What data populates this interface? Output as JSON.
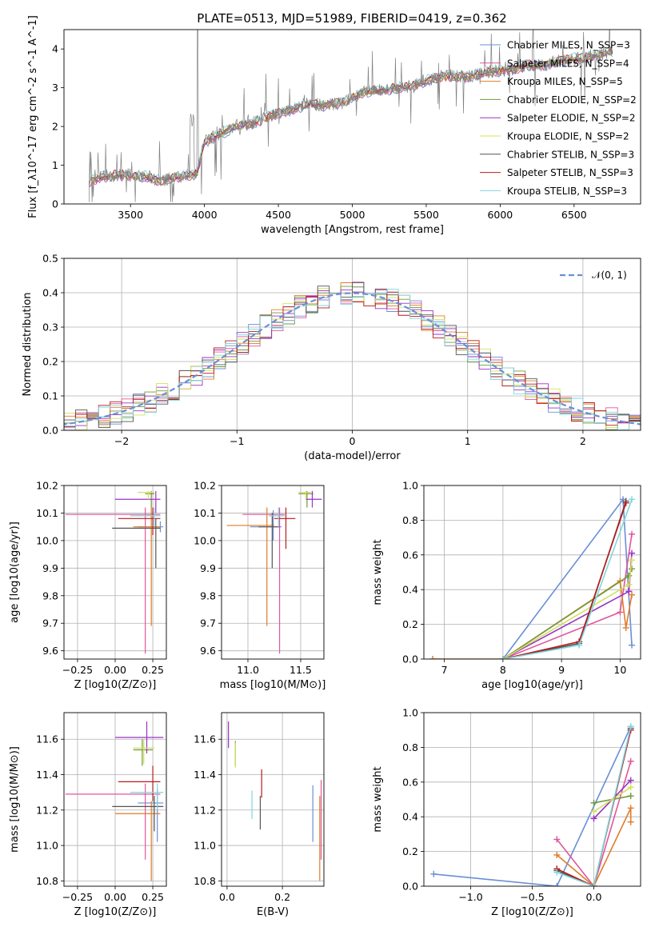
{
  "figure_title": "PLATE=0513, MJD=51989, FIBERID=0419, z=0.362",
  "colors": {
    "c0": "#6a8fd6",
    "c1": "#e0569b",
    "c2": "#e07b29",
    "c3": "#6f9a3c",
    "c4": "#9b32c6",
    "c5": "#d4e05a",
    "c6": "#555555",
    "c7": "#b81c1c",
    "c8": "#7fd6de",
    "grid": "#b0b0b0",
    "data": "#808080"
  },
  "chart_data": [
    {
      "panel": "spectrum",
      "type": "line",
      "xlabel": "wavelength [Angstrom, rest frame]",
      "ylabel": "Flux [f_λ10^-17 erg cm^-2 s^-1 A^-1]",
      "xlim": [
        3050,
        6950
      ],
      "ylim": [
        0,
        4.5
      ],
      "xticks": [
        3500,
        4000,
        4500,
        5000,
        5500,
        6000,
        6500
      ],
      "yticks": [
        0,
        1,
        2,
        3,
        4
      ],
      "grid": false,
      "legend": "top-right",
      "legend_entries": [
        "Chabrier MILES, N_SSP=3",
        "Salpeter MILES, N_SSP=4",
        "Kroupa MILES, N_SSP=5",
        "Chabrier ELODIE, N_SSP=2",
        "Salpeter ELODIE, N_SSP=2",
        "Kroupa ELODIE, N_SSP=2",
        "Chabrier STELIB, N_SSP=3",
        "Salpeter STELIB, N_SSP=3",
        "Kroupa STELIB, N_SSP=3"
      ],
      "continuum": {
        "x": [
          3220,
          3300,
          3400,
          3500,
          3600,
          3700,
          3800,
          3900,
          3950,
          4000,
          4100,
          4200,
          4300,
          4400,
          4500,
          4600,
          4700,
          4800,
          4900,
          5000,
          5100,
          5200,
          5300,
          5400,
          5500,
          5600,
          5700,
          5800,
          5900,
          6000,
          6100,
          6200,
          6300,
          6400,
          6500,
          6600,
          6700,
          6760
        ],
        "y": [
          0.6,
          0.7,
          0.75,
          0.75,
          0.72,
          0.6,
          0.7,
          0.75,
          0.8,
          1.6,
          1.8,
          2.0,
          2.05,
          2.2,
          2.35,
          2.45,
          2.6,
          2.55,
          2.6,
          2.75,
          2.9,
          2.95,
          3.0,
          3.05,
          3.2,
          3.3,
          3.3,
          3.3,
          3.4,
          3.45,
          3.5,
          3.6,
          3.6,
          3.7,
          3.75,
          3.8,
          3.9,
          3.95
        ]
      }
    },
    {
      "panel": "residual_histogram",
      "type": "line",
      "xlabel": "(data-model)/error",
      "ylabel": "Normed distribution",
      "xlim": [
        -2.5,
        2.5
      ],
      "ylim": [
        0,
        0.5
      ],
      "xticks": [
        -2,
        -1,
        0,
        1,
        2
      ],
      "yticks": [
        0.0,
        0.1,
        0.2,
        0.3,
        0.4,
        0.5
      ],
      "grid": true,
      "legend": "top-right",
      "reference_curve": "𝒩(0, 1)",
      "bin_width": 0.1
    },
    {
      "panel": "age_vs_Z",
      "type": "scatter",
      "xlabel": "Z [log10(Z/Z⊙)]",
      "ylabel": "age [log10(age/yr)]",
      "xlim": [
        -0.34,
        0.34
      ],
      "ylim": [
        9.57,
        10.2
      ],
      "xticks": [
        -0.25,
        0.0,
        0.25
      ],
      "yticks": [
        9.6,
        9.7,
        9.8,
        9.9,
        10.0,
        10.1,
        10.2
      ],
      "points": [
        {
          "s": 0,
          "x": 0.3,
          "y": 10.05,
          "xl": 0.15,
          "xh": 0.32,
          "yl": 10.03,
          "yh": 10.07
        },
        {
          "s": 1,
          "x": 0.2,
          "y": 10.095,
          "xl": -0.33,
          "xh": 0.3,
          "yl": 9.59,
          "yh": 10.12
        },
        {
          "s": 2,
          "x": 0.24,
          "y": 10.05,
          "xl": 0.12,
          "xh": 0.3,
          "yl": 9.69,
          "yh": 10.12
        },
        {
          "s": 3,
          "x": 0.24,
          "y": 10.17,
          "xl": 0.2,
          "xh": 0.26,
          "yl": 10.12,
          "yh": 10.18
        },
        {
          "s": 4,
          "x": 0.27,
          "y": 10.15,
          "xl": 0.0,
          "xh": 0.3,
          "yl": 10.1,
          "yh": 10.18
        },
        {
          "s": 5,
          "x": 0.22,
          "y": 10.175,
          "xl": 0.15,
          "xh": 0.26,
          "yl": 10.15,
          "yh": 10.18
        },
        {
          "s": 6,
          "x": 0.27,
          "y": 10.045,
          "xl": -0.02,
          "xh": 0.3,
          "yl": 9.9,
          "yh": 10.08
        },
        {
          "s": 7,
          "x": 0.25,
          "y": 10.08,
          "xl": 0.02,
          "xh": 0.3,
          "yl": 10.02,
          "yh": 10.12
        },
        {
          "s": 8,
          "x": 0.26,
          "y": 10.09,
          "xl": 0.1,
          "xh": 0.3,
          "yl": 10.05,
          "yh": 10.12
        }
      ]
    },
    {
      "panel": "age_vs_mass",
      "type": "scatter",
      "xlabel": "mass [log10(M/M⊙)]",
      "ylabel": "",
      "xlim": [
        10.75,
        11.72
      ],
      "ylim": [
        9.57,
        10.2
      ],
      "xticks": [
        11.0,
        11.5
      ],
      "yticks": [
        9.6,
        9.7,
        9.8,
        9.9,
        10.0,
        10.1,
        10.2
      ],
      "points": [
        {
          "s": 0,
          "x": 11.24,
          "y": 10.05,
          "xl": 11.02,
          "xh": 11.32,
          "yl": 10.0,
          "yh": 10.11
        },
        {
          "s": 1,
          "x": 11.3,
          "y": 10.095,
          "xl": 10.95,
          "xh": 11.35,
          "yl": 9.59,
          "yh": 10.12
        },
        {
          "s": 2,
          "x": 11.18,
          "y": 10.055,
          "xl": 10.8,
          "xh": 11.25,
          "yl": 9.69,
          "yh": 10.12
        },
        {
          "s": 3,
          "x": 11.56,
          "y": 10.17,
          "xl": 11.48,
          "xh": 11.62,
          "yl": 10.12,
          "yh": 10.18
        },
        {
          "s": 4,
          "x": 11.61,
          "y": 10.15,
          "xl": 11.55,
          "xh": 11.7,
          "yl": 10.12,
          "yh": 10.18
        },
        {
          "s": 5,
          "x": 11.55,
          "y": 10.175,
          "xl": 11.48,
          "xh": 11.6,
          "yl": 10.15,
          "yh": 10.18
        },
        {
          "s": 6,
          "x": 11.23,
          "y": 10.05,
          "xl": 11.1,
          "xh": 11.3,
          "yl": 9.9,
          "yh": 10.1
        },
        {
          "s": 7,
          "x": 11.36,
          "y": 10.08,
          "xl": 11.25,
          "xh": 11.45,
          "yl": 9.97,
          "yh": 10.12
        },
        {
          "s": 8,
          "x": 11.29,
          "y": 10.09,
          "xl": 11.2,
          "xh": 11.35,
          "yl": 10.05,
          "yh": 10.12
        }
      ]
    },
    {
      "panel": "weight_vs_age",
      "type": "line",
      "xlabel": "age [log10(age/yr)]",
      "ylabel": "mass weight",
      "xlim": [
        6.65,
        10.35
      ],
      "ylim": [
        0,
        1
      ],
      "xticks": [
        7,
        8,
        9,
        10
      ],
      "yticks": [
        0.0,
        0.2,
        0.4,
        0.6,
        0.8,
        1.0
      ],
      "series": [
        {
          "s": 0,
          "x": [
            8.0,
            10.05,
            10.2
          ],
          "y": [
            0.0,
            0.92,
            0.08
          ]
        },
        {
          "s": 1,
          "x": [
            8.0,
            10.0,
            10.2
          ],
          "y": [
            0.0,
            0.27,
            0.72
          ]
        },
        {
          "s": 2,
          "x": [
            6.8,
            8.0,
            10.0,
            10.1,
            10.2
          ],
          "y": [
            0.0,
            0.0,
            0.45,
            0.18,
            0.37
          ]
        },
        {
          "s": 3,
          "x": [
            8.0,
            10.15,
            10.2
          ],
          "y": [
            0.0,
            0.48,
            0.52
          ]
        },
        {
          "s": 4,
          "x": [
            8.0,
            10.15,
            10.2
          ],
          "y": [
            0.0,
            0.39,
            0.61
          ]
        },
        {
          "s": 5,
          "x": [
            8.0,
            10.15,
            10.2
          ],
          "y": [
            0.0,
            0.43,
            0.57
          ]
        },
        {
          "s": 6,
          "x": [
            8.0,
            9.3,
            10.1
          ],
          "y": [
            0.0,
            0.09,
            0.91
          ]
        },
        {
          "s": 7,
          "x": [
            8.0,
            9.3,
            10.1
          ],
          "y": [
            0.0,
            0.1,
            0.9
          ]
        },
        {
          "s": 8,
          "x": [
            8.0,
            9.3,
            10.2
          ],
          "y": [
            0.0,
            0.08,
            0.92
          ]
        }
      ]
    },
    {
      "panel": "mass_vs_Z",
      "type": "scatter",
      "xlabel": "Z [log10(Z/Z⊙)]",
      "ylabel": "mass [log10(M/M⊙)]",
      "xlim": [
        -0.34,
        0.34
      ],
      "ylim": [
        10.77,
        11.75
      ],
      "xticks": [
        -0.25,
        0.0,
        0.25
      ],
      "yticks": [
        10.8,
        11.0,
        11.2,
        11.4,
        11.6
      ],
      "points": [
        {
          "s": 0,
          "x": 0.28,
          "y": 11.24,
          "xl": 0.15,
          "xh": 0.32,
          "yl": 11.02,
          "yh": 11.32
        },
        {
          "s": 1,
          "x": 0.2,
          "y": 11.29,
          "xl": -0.33,
          "xh": 0.3,
          "yl": 10.92,
          "yh": 11.35
        },
        {
          "s": 2,
          "x": 0.24,
          "y": 11.18,
          "xl": 0.0,
          "xh": 0.3,
          "yl": 10.8,
          "yh": 11.25
        },
        {
          "s": 3,
          "x": 0.18,
          "y": 11.54,
          "xl": 0.12,
          "xh": 0.25,
          "yl": 11.45,
          "yh": 11.6
        },
        {
          "s": 4,
          "x": 0.21,
          "y": 11.61,
          "xl": 0.0,
          "xh": 0.32,
          "yl": 11.52,
          "yh": 11.7
        },
        {
          "s": 5,
          "x": 0.19,
          "y": 11.55,
          "xl": 0.12,
          "xh": 0.26,
          "yl": 11.46,
          "yh": 11.6
        },
        {
          "s": 6,
          "x": 0.26,
          "y": 11.22,
          "xl": -0.02,
          "xh": 0.32,
          "yl": 11.08,
          "yh": 11.28
        },
        {
          "s": 7,
          "x": 0.25,
          "y": 11.36,
          "xl": 0.02,
          "xh": 0.3,
          "yl": 11.25,
          "yh": 11.45
        },
        {
          "s": 8,
          "x": 0.28,
          "y": 11.3,
          "xl": 0.1,
          "xh": 0.32,
          "yl": 11.2,
          "yh": 11.35
        }
      ]
    },
    {
      "panel": "mass_vs_EBV",
      "type": "scatter",
      "xlabel": "E(B-V)",
      "ylabel": "",
      "xlim": [
        -0.02,
        0.35
      ],
      "ylim": [
        10.77,
        11.75
      ],
      "xticks": [
        0.0,
        0.2
      ],
      "yticks": [
        10.8,
        11.0,
        11.2,
        11.4,
        11.6
      ],
      "points": [
        {
          "s": 0,
          "x": 0.31,
          "y": 11.18,
          "yl": 11.02,
          "yh": 11.34
        },
        {
          "s": 1,
          "x": 0.34,
          "y": 11.15,
          "yl": 10.92,
          "yh": 11.37
        },
        {
          "s": 2,
          "x": 0.335,
          "y": 11.05,
          "yl": 10.8,
          "yh": 11.28
        },
        {
          "s": 3,
          "x": 0.03,
          "y": 11.52,
          "yl": 11.45,
          "yh": 11.59
        },
        {
          "s": 4,
          "x": 0.005,
          "y": 11.62,
          "yl": 11.55,
          "yh": 11.7
        },
        {
          "s": 5,
          "x": 0.03,
          "y": 11.51,
          "yl": 11.44,
          "yh": 11.58
        },
        {
          "s": 6,
          "x": 0.12,
          "y": 11.18,
          "yl": 11.09,
          "yh": 11.28
        },
        {
          "s": 7,
          "x": 0.125,
          "y": 11.35,
          "yl": 11.27,
          "yh": 11.43
        },
        {
          "s": 8,
          "x": 0.09,
          "y": 11.23,
          "yl": 11.15,
          "yh": 11.31
        }
      ]
    },
    {
      "panel": "weight_vs_Z",
      "type": "line",
      "xlabel": "Z [log10(Z/Z⊙)]",
      "ylabel": "mass weight",
      "xlim": [
        -1.38,
        0.38
      ],
      "ylim": [
        0,
        1
      ],
      "xticks": [
        -1.0,
        -0.5,
        0.0
      ],
      "yticks": [
        0.0,
        0.2,
        0.4,
        0.6,
        0.8,
        1.0
      ],
      "series": [
        {
          "s": 0,
          "x": [
            -1.3,
            -0.3,
            0.3
          ],
          "y": [
            0.07,
            0.0,
            0.92
          ]
        },
        {
          "s": 1,
          "x": [
            -0.3,
            0.0,
            0.3
          ],
          "y": [
            0.27,
            0.0,
            0.72
          ]
        },
        {
          "s": 2,
          "x": [
            -0.3,
            0.0,
            0.3,
            0.3
          ],
          "y": [
            0.18,
            0.0,
            0.45,
            0.37
          ]
        },
        {
          "s": 3,
          "x": [
            0.0,
            0.3
          ],
          "y": [
            0.48,
            0.52
          ]
        },
        {
          "s": 4,
          "x": [
            0.0,
            0.3
          ],
          "y": [
            0.39,
            0.61
          ]
        },
        {
          "s": 5,
          "x": [
            0.0,
            0.3
          ],
          "y": [
            0.43,
            0.57
          ]
        },
        {
          "s": 6,
          "x": [
            -0.3,
            0.0,
            0.3
          ],
          "y": [
            0.09,
            0.0,
            0.91
          ]
        },
        {
          "s": 7,
          "x": [
            -0.3,
            0.0,
            0.3
          ],
          "y": [
            0.1,
            0.0,
            0.9
          ]
        },
        {
          "s": 8,
          "x": [
            -0.3,
            0.0,
            0.3
          ],
          "y": [
            0.08,
            0.0,
            0.92
          ]
        }
      ]
    }
  ]
}
